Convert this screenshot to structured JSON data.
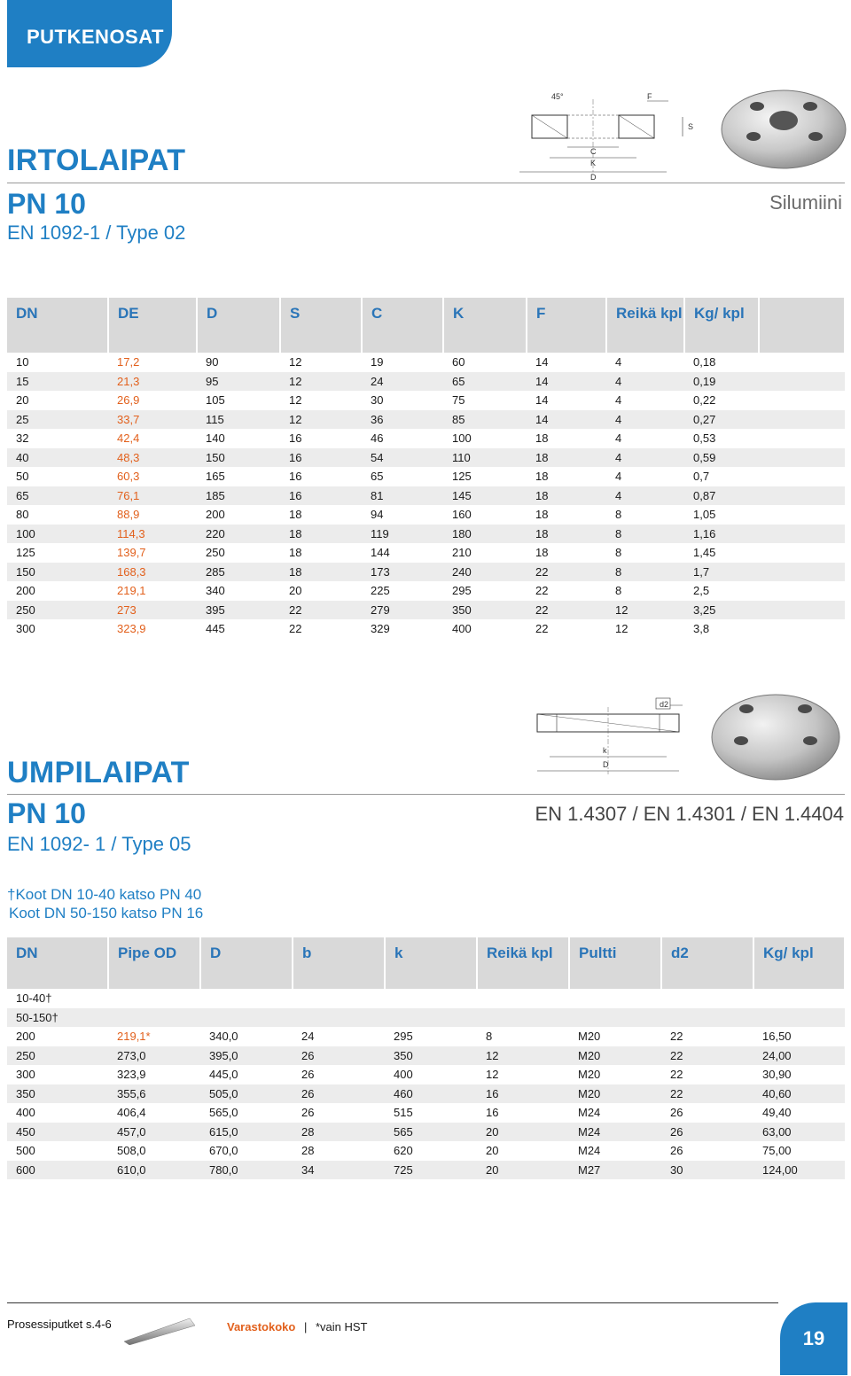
{
  "section_tab": "PUTKENOSAT",
  "irtolaipat": {
    "title": "IRTOLAIPAT",
    "pressure": "PN 10",
    "standard": "EN 1092-1 / Type 02",
    "material_note": "Silumiini",
    "diagram_labels": [
      "45°",
      "F",
      "S",
      "C",
      "K",
      "D"
    ],
    "columns": [
      "DN",
      "DE",
      "D",
      "S",
      "C",
      "K",
      "F",
      "Reikä kpl",
      "Kg/ kpl"
    ],
    "rows": [
      [
        "10",
        "17,2",
        "90",
        "12",
        "19",
        "60",
        "14",
        "4",
        "0,18"
      ],
      [
        "15",
        "21,3",
        "95",
        "12",
        "24",
        "65",
        "14",
        "4",
        "0,19"
      ],
      [
        "20",
        "26,9",
        "105",
        "12",
        "30",
        "75",
        "14",
        "4",
        "0,22"
      ],
      [
        "25",
        "33,7",
        "115",
        "12",
        "36",
        "85",
        "14",
        "4",
        "0,27"
      ],
      [
        "32",
        "42,4",
        "140",
        "16",
        "46",
        "100",
        "18",
        "4",
        "0,53"
      ],
      [
        "40",
        "48,3",
        "150",
        "16",
        "54",
        "110",
        "18",
        "4",
        "0,59"
      ],
      [
        "50",
        "60,3",
        "165",
        "16",
        "65",
        "125",
        "18",
        "4",
        "0,7"
      ],
      [
        "65",
        "76,1",
        "185",
        "16",
        "81",
        "145",
        "18",
        "4",
        "0,87"
      ],
      [
        "80",
        "88,9",
        "200",
        "18",
        "94",
        "160",
        "18",
        "8",
        "1,05"
      ],
      [
        "100",
        "114,3",
        "220",
        "18",
        "119",
        "180",
        "18",
        "8",
        "1,16"
      ],
      [
        "125",
        "139,7",
        "250",
        "18",
        "144",
        "210",
        "18",
        "8",
        "1,45"
      ],
      [
        "150",
        "168,3",
        "285",
        "18",
        "173",
        "240",
        "22",
        "8",
        "1,7"
      ],
      [
        "200",
        "219,1",
        "340",
        "20",
        "225",
        "295",
        "22",
        "8",
        "2,5"
      ],
      [
        "250",
        "273",
        "395",
        "22",
        "279",
        "350",
        "22",
        "12",
        "3,25"
      ],
      [
        "300",
        "323,9",
        "445",
        "22",
        "329",
        "400",
        "22",
        "12",
        "3,8"
      ]
    ]
  },
  "umpilaipat": {
    "title": "UMPILAIPAT",
    "pressure": "PN 10",
    "standard": "EN 1092- 1 / Type 05",
    "material_note": "EN 1.4307 / EN 1.4301 / EN 1.4404",
    "diagram_labels": [
      "d2",
      "k",
      "D"
    ],
    "note_line1": "†Koot DN 10-40 katso PN 40",
    "note_line2": "Koot DN 50-150 katso PN 16",
    "columns": [
      "DN",
      "Pipe OD",
      "D",
      "b",
      "k",
      "Reikä kpl",
      "Pultti",
      "d2",
      "Kg/ kpl"
    ],
    "rows": [
      [
        "10-40†",
        "",
        "",
        "",
        "",
        "",
        "",
        "",
        ""
      ],
      [
        "50-150†",
        "",
        "",
        "",
        "",
        "",
        "",
        "",
        ""
      ],
      [
        "200",
        "219,1*",
        "340,0",
        "24",
        "295",
        "8",
        "M20",
        "22",
        "16,50"
      ],
      [
        "250",
        "273,0",
        "395,0",
        "26",
        "350",
        "12",
        "M20",
        "22",
        "24,00"
      ],
      [
        "300",
        "323,9",
        "445,0",
        "26",
        "400",
        "12",
        "M20",
        "22",
        "30,90"
      ],
      [
        "350",
        "355,6",
        "505,0",
        "26",
        "460",
        "16",
        "M20",
        "22",
        "40,60"
      ],
      [
        "400",
        "406,4",
        "565,0",
        "26",
        "515",
        "16",
        "M24",
        "26",
        "49,40"
      ],
      [
        "450",
        "457,0",
        "615,0",
        "28",
        "565",
        "20",
        "M24",
        "26",
        "63,00"
      ],
      [
        "500",
        "508,0",
        "670,0",
        "28",
        "620",
        "20",
        "M24",
        "26",
        "75,00"
      ],
      [
        "600",
        "610,0",
        "780,0",
        "34",
        "725",
        "20",
        "M27",
        "30",
        "124,00"
      ]
    ]
  },
  "footer": {
    "left": "Prosessiputket s.4-6",
    "stock": "Varastokoko",
    "separator": "|",
    "note": "*vain HST",
    "page": "19"
  },
  "colors": {
    "brand_blue": "#1f7fc4",
    "accent_orange": "#e2601c",
    "header_gray": "#d9d9d9",
    "stripe_gray": "#ececec"
  }
}
